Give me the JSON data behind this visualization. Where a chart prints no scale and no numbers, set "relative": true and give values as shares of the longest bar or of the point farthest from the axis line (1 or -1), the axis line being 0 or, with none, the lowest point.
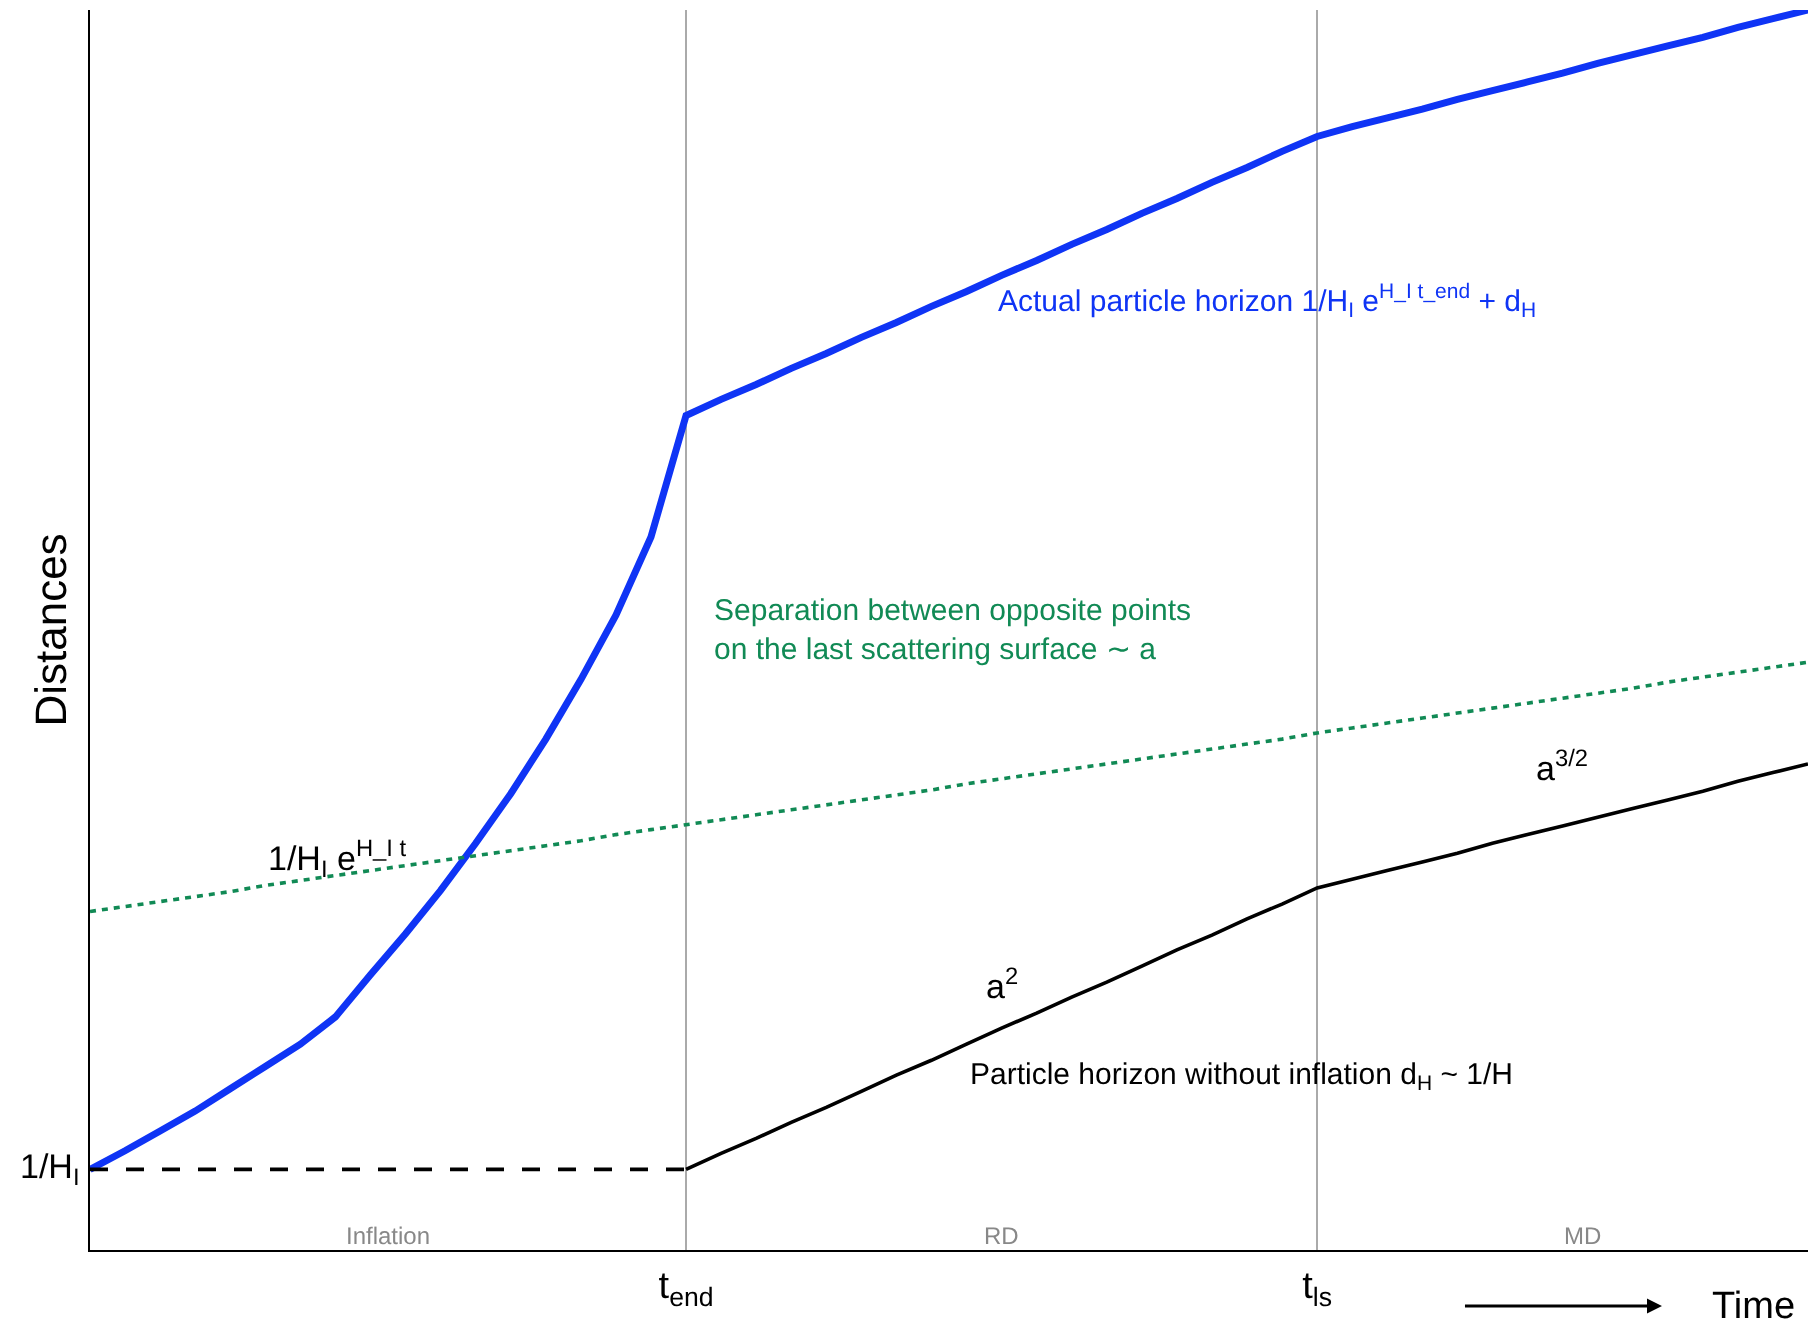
{
  "chart_data": {
    "type": "line",
    "relative": true,
    "xlabel": "Time",
    "ylabel": "Distances",
    "grid": "x",
    "categories": [
      null,
      null,
      null,
      null,
      null,
      null,
      null,
      null,
      null,
      null,
      null,
      null,
      null,
      null,
      null,
      null,
      null,
      "t$_{end}$",
      null,
      null,
      null,
      null,
      null,
      null,
      null,
      null,
      null,
      null,
      null,
      null,
      null,
      null,
      null,
      null,
      null,
      "t$_{ls}$",
      null,
      null,
      null,
      null,
      null,
      null,
      null,
      null,
      null,
      null,
      null,
      null,
      null,
      null
    ],
    "series": [
      {
        "name": "Actual particle horizon 1/H$_{I}$ e$^{H_I t_end}$ + d$_{H}$",
        "color": "#0f34f5",
        "line_style": "solid",
        "values": [
          0.065,
          0.08,
          0.096,
          0.112,
          0.13,
          0.148,
          0.166,
          0.188,
          0.222,
          0.255,
          0.29,
          0.328,
          0.368,
          0.412,
          0.46,
          0.512,
          0.575,
          0.673,
          0.686,
          0.698,
          0.711,
          0.723,
          0.736,
          0.748,
          0.761,
          0.773,
          0.786,
          0.798,
          0.811,
          0.823,
          0.836,
          0.848,
          0.861,
          0.873,
          0.886,
          0.898,
          0.906,
          0.913,
          0.92,
          0.928,
          0.935,
          0.942,
          0.949,
          0.957,
          0.964,
          0.971,
          0.978,
          0.986,
          0.993,
          1
        ]
      },
      {
        "color": "#000000",
        "line_style": "dashed",
        "values": [
          0.065,
          0.065,
          0.065,
          0.065,
          0.065,
          0.065,
          0.065,
          0.065,
          0.065,
          0.065,
          0.065,
          0.065,
          0.065,
          0.065,
          0.065,
          0.065,
          0.065,
          0.065,
          null,
          null,
          null,
          null,
          null,
          null,
          null,
          null,
          null,
          null,
          null,
          null,
          null,
          null,
          null,
          null,
          null,
          null,
          null,
          null,
          null,
          null,
          null,
          null,
          null,
          null,
          null,
          null,
          null,
          null,
          null,
          null
        ]
      },
      {
        "name": "Particle horizon without inflation d$_{H}$ ~ 1/H",
        "color": "#000000",
        "line_style": "solid",
        "values": [
          null,
          null,
          null,
          null,
          null,
          null,
          null,
          null,
          null,
          null,
          null,
          null,
          null,
          null,
          null,
          null,
          null,
          0.065,
          0.078,
          0.09,
          0.103,
          0.115,
          0.128,
          0.141,
          0.153,
          0.166,
          0.179,
          0.191,
          0.204,
          0.216,
          0.229,
          0.242,
          0.254,
          0.267,
          0.279,
          0.292,
          0.299,
          0.306,
          0.313,
          0.32,
          0.328,
          0.335,
          0.342,
          0.349,
          0.356,
          0.363,
          0.37,
          0.378,
          0.385,
          0.392
        ]
      },
      {
        "name": "Separation between opposite points\non the last scattering surface ∼ a",
        "color": "#118a55",
        "line_style": "dotted",
        "values": [
          0.273,
          0.277,
          0.281,
          0.285,
          0.289,
          0.294,
          0.298,
          0.302,
          0.306,
          0.31,
          0.314,
          0.318,
          0.322,
          0.326,
          0.33,
          0.335,
          0.339,
          0.343,
          0.347,
          0.351,
          0.355,
          0.359,
          0.363,
          0.367,
          0.371,
          0.376,
          0.38,
          0.384,
          0.388,
          0.392,
          0.396,
          0.4,
          0.404,
          0.408,
          0.412,
          0.417,
          0.421,
          0.425,
          0.429,
          0.433,
          0.437,
          0.441,
          0.445,
          0.449,
          0.453,
          0.458,
          0.462,
          0.466,
          0.47,
          0.474
        ]
      }
    ],
    "annotations": [
      "1/H$_{I}$ e$^{H_I t}$",
      "a$^{2}$",
      "a$^{3/2}$",
      "1/H$_{I}$",
      "Inflation",
      "RD",
      "MD"
    ],
    "legend": false
  }
}
